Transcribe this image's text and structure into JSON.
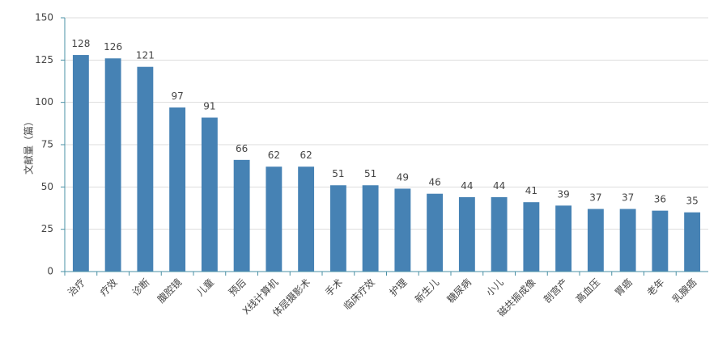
{
  "chart_data": {
    "type": "bar",
    "y_label": "文献量（篇）",
    "categories": [
      "治疗",
      "疗效",
      "诊断",
      "腹腔镜",
      "儿童",
      "预后",
      "X线计算机",
      "体层摄影术",
      "手术",
      "临床疗效",
      "护理",
      "新生儿",
      "糖尿病",
      "小儿",
      "磁共振成像",
      "剖宫产",
      "高血压",
      "胃癌",
      "老年",
      "乳腺癌"
    ],
    "values": [
      128,
      126,
      121,
      97,
      91,
      66,
      62,
      62,
      51,
      51,
      49,
      46,
      44,
      44,
      41,
      39,
      37,
      37,
      36,
      35
    ],
    "color": "#4682b4",
    "ylim": [
      0,
      150
    ],
    "yticks": [
      0,
      25,
      50,
      75,
      100,
      125,
      150
    ],
    "grid": true
  }
}
